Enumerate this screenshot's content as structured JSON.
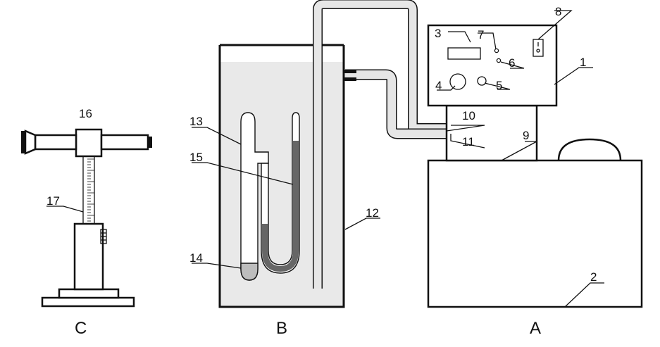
{
  "apparatus": {
    "A": {
      "label": "A"
    },
    "B": {
      "label": "B"
    },
    "C": {
      "label": "C"
    }
  },
  "callouts": [
    "1",
    "2",
    "3",
    "4",
    "5",
    "6",
    "7",
    "8",
    "9",
    "10",
    "11",
    "12",
    "13",
    "14",
    "15",
    "16",
    "17"
  ]
}
